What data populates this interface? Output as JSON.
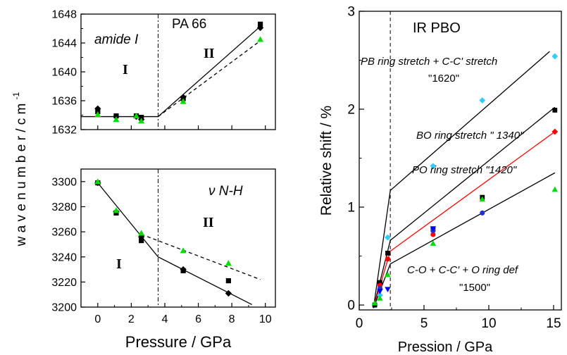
{
  "chart_data": [
    {
      "type": "scatter",
      "panel": "amide-I",
      "title": "PA 66",
      "annotation": "amide I",
      "region_labels": [
        "I",
        "II"
      ],
      "ylabel": "w a v e n u m b e r  / c m",
      "ylabel_sup": "-1",
      "xlim": [
        -1,
        10.6
      ],
      "ylim": [
        1632,
        1648
      ],
      "xticks": [
        0,
        2,
        4,
        6,
        8,
        10
      ],
      "yticks": [
        1632,
        1636,
        1640,
        1644,
        1648
      ],
      "transition_x": 3.6,
      "series": [
        {
          "marker": "square",
          "color": "#000000",
          "x": [
            0,
            1.1,
            2.3,
            2.6,
            5.1,
            9.7
          ],
          "y": [
            1634.5,
            1633.9,
            1633.9,
            1633.7,
            1636.3,
            1646.6
          ]
        },
        {
          "marker": "diamond",
          "color": "#000000",
          "x": [
            0,
            1.1,
            2.3,
            2.6,
            5.1,
            9.7
          ],
          "y": [
            1634.9,
            1633.8,
            1633.8,
            1633.4,
            1636.5,
            1646.1
          ]
        },
        {
          "marker": "triangle",
          "color": "#00dd00",
          "x": [
            0,
            1.1,
            2.3,
            2.6,
            5.1,
            9.7
          ],
          "y": [
            1634.1,
            1633.4,
            1633.9,
            1633.2,
            1635.9,
            1644.5
          ]
        }
      ],
      "fits": [
        {
          "style": "solid",
          "x": [
            -1,
            3.6,
            9.7
          ],
          "y": [
            1633.8,
            1633.8,
            1646.3
          ]
        },
        {
          "style": "dashed",
          "x": [
            3.6,
            9.7
          ],
          "y": [
            1633.8,
            1644.3
          ]
        }
      ]
    },
    {
      "type": "scatter",
      "panel": "NH",
      "annotation": "ν N-H",
      "region_labels": [
        "I",
        "II"
      ],
      "xlabel": "Pressure / GPa",
      "xlim": [
        -1,
        10.6
      ],
      "ylim": [
        3200,
        3310
      ],
      "xticks": [
        0,
        2,
        4,
        6,
        8,
        10
      ],
      "yticks": [
        3200,
        3220,
        3240,
        3260,
        3280,
        3300
      ],
      "transition_x": 3.6,
      "series": [
        {
          "marker": "square",
          "color": "#000000",
          "x": [
            0,
            1.1,
            2.6,
            5.1,
            7.8
          ],
          "y": [
            3299,
            3275,
            3253,
            3229,
            3221
          ]
        },
        {
          "marker": "diamond",
          "color": "#000000",
          "x": [
            0,
            1.1,
            2.6,
            5.1,
            7.8
          ],
          "y": [
            3299,
            3276,
            3256,
            3230,
            3211
          ]
        },
        {
          "marker": "triangle",
          "color": "#00dd00",
          "x": [
            0,
            1.1,
            2.6,
            5.1,
            7.8
          ],
          "y": [
            3300,
            3277,
            3259,
            3245,
            3235
          ]
        }
      ],
      "fits": [
        {
          "style": "solid",
          "x": [
            0,
            3.6,
            9.2
          ],
          "y": [
            3299,
            3240,
            3202
          ]
        },
        {
          "style": "dashed",
          "x": [
            2.6,
            9.7
          ],
          "y": [
            3258,
            3222
          ]
        }
      ]
    },
    {
      "type": "scatter",
      "panel": "PBO",
      "title": "IR  PBO",
      "xlabel": "Pression / GPa",
      "ylabel": "Relative shift / %",
      "xlim": [
        0,
        15.6
      ],
      "ylim": [
        -0.05,
        3
      ],
      "xticks": [
        0,
        5,
        10,
        15
      ],
      "yticks": [
        0,
        1,
        2,
        3
      ],
      "transition_x": 2.4,
      "annotations": [
        {
          "text": "PB ring stretch + C-C' stretch",
          "italic": true
        },
        {
          "text": "\"1620\"",
          "italic": false
        },
        {
          "text": "BO ring stretch  \" 1340\"",
          "italic": true
        },
        {
          "text": "PO ring stretch  \"1420\"",
          "italic": true
        },
        {
          "text": "C-O + C-C' + O ring def",
          "italic": true
        },
        {
          "text": "\"1500\"",
          "italic": false
        }
      ],
      "series": [
        {
          "marker": "diamond",
          "color": "#33ccff",
          "x": [
            1.2,
            1.6,
            2.2,
            5.7,
            9.5,
            15.1
          ],
          "y": [
            0.0,
            0.1,
            0.69,
            1.42,
            2.09,
            2.54
          ]
        },
        {
          "marker": "square",
          "color": "#000000",
          "x": [
            1.2,
            1.6,
            2.2,
            5.7,
            9.5,
            15.1
          ],
          "y": [
            0.0,
            0.23,
            0.53,
            0.77,
            1.1,
            1.99
          ]
        },
        {
          "marker": "circle",
          "color": "#ff0000",
          "x": [
            1.6,
            2.2,
            5.7
          ],
          "y": [
            0.2,
            0.47,
            0.72
          ]
        },
        {
          "marker": "diamond-solid",
          "color": "#ff0000",
          "x": [
            15.1
          ],
          "y": [
            1.77
          ]
        },
        {
          "marker": "circle",
          "color": "#2233cc",
          "x": [
            1.6,
            5.7,
            9.5
          ],
          "y": [
            0.17,
            0.76,
            0.94
          ]
        },
        {
          "marker": "triangle-down",
          "color": "#0000ff",
          "x": [
            1.6,
            2.2,
            5.7
          ],
          "y": [
            0.14,
            0.16,
            0.78
          ]
        },
        {
          "marker": "triangle",
          "color": "#00dd00",
          "x": [
            1.2,
            1.6,
            2.2,
            5.7,
            9.5,
            15.1
          ],
          "y": [
            0.02,
            0.07,
            0.31,
            0.63,
            1.08,
            1.18
          ]
        }
      ],
      "fits": [
        {
          "style": "solid",
          "color": "#000000",
          "x": [
            1.1,
            2.4,
            14.7
          ],
          "y": [
            -0.03,
            1.17,
            2.59
          ]
        },
        {
          "style": "solid",
          "color": "#000000",
          "x": [
            1.1,
            2.4,
            15.1
          ],
          "y": [
            -0.03,
            0.66,
            2.02
          ]
        },
        {
          "style": "solid",
          "color": "#ff0000",
          "x": [
            1.1,
            2.4,
            15.1
          ],
          "y": [
            -0.03,
            0.55,
            1.77
          ]
        },
        {
          "style": "solid",
          "color": "#000000",
          "x": [
            1.1,
            2.4,
            15.1
          ],
          "y": [
            -0.03,
            0.42,
            1.35
          ]
        }
      ]
    }
  ]
}
